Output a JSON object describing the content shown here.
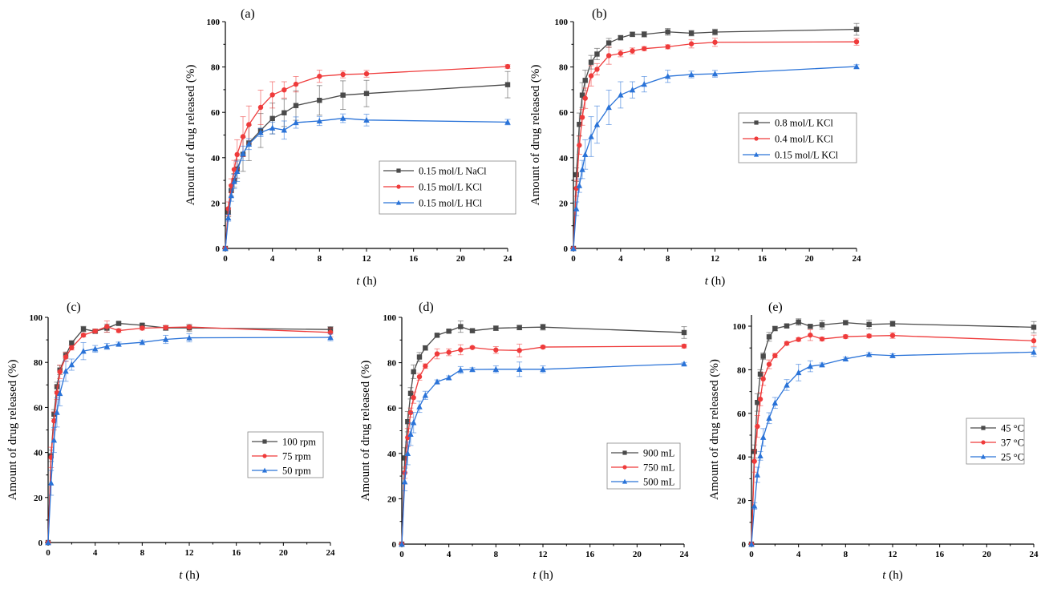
{
  "figure": {
    "colors": {
      "series1": "#4a4a4a",
      "series2": "#ef3b3b",
      "series3": "#2a73d8"
    },
    "markers": [
      "square",
      "circle",
      "triangle"
    ]
  },
  "chart_data": [
    {
      "type": "line",
      "panel_label": "(a)",
      "xlabel_italic": "t",
      "xlabel_unit": " (h)",
      "ylabel": "Amount of drug released (%)",
      "xlim": [
        0,
        24
      ],
      "ylim": [
        0,
        100
      ],
      "xticks": [
        0,
        4,
        8,
        12,
        16,
        20,
        24
      ],
      "yticks": [
        0,
        20,
        40,
        60,
        80,
        100
      ],
      "legend_position": "center-right",
      "x": [
        0,
        0.25,
        0.5,
        0.75,
        1,
        1.5,
        2,
        3,
        4,
        5,
        6,
        8,
        10,
        12,
        24
      ],
      "series": [
        {
          "name": "0.15 mol/L NaCl",
          "values": [
            0,
            16,
            25.5,
            30,
            35,
            41.5,
            46.5,
            52,
            57.3,
            59.8,
            63,
            65.3,
            67.6,
            68.3,
            72.2
          ],
          "errors": [
            0,
            2,
            2.5,
            3,
            4,
            7.5,
            7.8,
            7.5,
            6.8,
            6,
            6.5,
            6.5,
            6.3,
            5.8,
            5.8
          ]
        },
        {
          "name": "0.15 mol/L KCl",
          "values": [
            0,
            17.5,
            27.7,
            34.8,
            41.4,
            49.3,
            54.6,
            62.2,
            67.7,
            69.9,
            72.4,
            75.9,
            76.7,
            77,
            80.2
          ],
          "errors": [
            0,
            3,
            3,
            4,
            6.5,
            8.8,
            8.2,
            7.6,
            5.8,
            3.6,
            3.4,
            2.7,
            1.5,
            1.5,
            0.8
          ]
        },
        {
          "name": "0.15 mol/L HCl",
          "values": [
            0,
            13.5,
            23.3,
            29.5,
            34,
            41.9,
            46,
            51.1,
            53.1,
            52.2,
            55.5,
            56.2,
            57.4,
            56.6,
            55.7
          ],
          "errors": [
            0,
            1.5,
            2.5,
            3.2,
            4.5,
            3.2,
            2.4,
            1.8,
            2.6,
            4,
            2.5,
            2,
            1.9,
            2.6,
            1.2
          ]
        }
      ]
    },
    {
      "type": "line",
      "panel_label": "(b)",
      "xlabel_italic": "t",
      "xlabel_unit": " (h)",
      "ylabel": "Amount of drug released (%)",
      "xlim": [
        0,
        24
      ],
      "ylim": [
        0,
        100
      ],
      "xticks": [
        0,
        4,
        8,
        12,
        16,
        20,
        24
      ],
      "yticks": [
        0,
        20,
        40,
        60,
        80,
        100
      ],
      "legend_position": "center-right",
      "x": [
        0,
        0.25,
        0.5,
        0.75,
        1,
        1.5,
        2,
        3,
        4,
        5,
        6,
        8,
        10,
        12,
        24
      ],
      "series": [
        {
          "name": "0.8 mol/L KCl",
          "values": [
            0,
            32.5,
            54.7,
            67.6,
            74.1,
            82.1,
            85.7,
            90.6,
            92.9,
            94.4,
            94.4,
            95.5,
            94.9,
            95.4,
            96.6
          ],
          "errors": [
            0,
            3,
            5,
            5.5,
            4.5,
            3,
            2.5,
            2,
            1,
            1,
            1.2,
            1.5,
            1.2,
            1.3,
            2.6
          ]
        },
        {
          "name": "0.4 mol/L KCl",
          "values": [
            0,
            26.5,
            45.5,
            57.8,
            66.2,
            76.1,
            79,
            85,
            86,
            87.1,
            88.1,
            88.9,
            90.2,
            90.9,
            91.1
          ],
          "errors": [
            0,
            3.5,
            4,
            3.5,
            4.5,
            4.5,
            2.5,
            3.8,
            1.5,
            1.3,
            0.9,
            0.9,
            1.8,
            1.8,
            1.5
          ]
        },
        {
          "name": "0.15 mol/L KCl",
          "values": [
            0,
            17.5,
            27.7,
            34.8,
            41.4,
            49.3,
            54.6,
            62.2,
            67.7,
            69.9,
            72.4,
            75.9,
            76.7,
            77,
            80.2
          ],
          "errors": [
            0,
            3,
            3,
            4,
            6.5,
            8.8,
            8.2,
            7.6,
            5.8,
            3.6,
            3.4,
            2.7,
            1.5,
            1.5,
            0.8
          ]
        }
      ]
    },
    {
      "type": "line",
      "panel_label": "(c)",
      "xlabel_italic": "t",
      "xlabel_unit": " (h)",
      "ylabel": "Amount of drug released (%)",
      "xlim": [
        0,
        24
      ],
      "ylim": [
        0,
        100
      ],
      "xticks": [
        0,
        4,
        8,
        12,
        16,
        20,
        24
      ],
      "yticks": [
        0,
        20,
        40,
        60,
        80,
        100
      ],
      "legend_position": "center-right",
      "x": [
        0,
        0.25,
        0.5,
        0.75,
        1,
        1.5,
        2,
        3,
        4,
        5,
        6,
        8,
        10,
        12,
        24
      ],
      "series": [
        {
          "name": "100 rpm",
          "values": [
            0,
            38.5,
            57,
            69.2,
            76.6,
            83.1,
            88.6,
            94.8,
            93.8,
            95.2,
            97.3,
            96.5,
            95.3,
            95.3,
            94.6
          ],
          "errors": [
            0,
            2.5,
            2,
            2,
            2,
            1.5,
            1,
            1.2,
            0.8,
            1.8,
            0.6,
            0.8,
            1.1,
            1.6,
            1.3
          ]
        },
        {
          "name": "75 rpm",
          "values": [
            0,
            37.8,
            54,
            66.5,
            75.8,
            82.4,
            86.5,
            92.1,
            93.9,
            95.9,
            94.1,
            95.2,
            95.5,
            95.7,
            93.3
          ],
          "errors": [
            0,
            4.5,
            4,
            3,
            3,
            2,
            1,
            0.8,
            0.8,
            2.5,
            0.8,
            0.8,
            0.8,
            0.8,
            2
          ]
        },
        {
          "name": "50 rpm",
          "values": [
            0,
            26.5,
            45.5,
            57.8,
            66.2,
            76.1,
            79,
            85,
            86,
            87.1,
            88.1,
            88.9,
            90.2,
            90.9,
            91.1
          ],
          "errors": [
            0,
            5.5,
            5.5,
            6.5,
            5.5,
            4.5,
            2.5,
            3.8,
            1.5,
            1.3,
            0.9,
            0.9,
            1.8,
            1.8,
            1.5
          ]
        }
      ]
    },
    {
      "type": "line",
      "panel_label": "(d)",
      "xlabel_italic": "t",
      "xlabel_unit": " (h)",
      "ylabel": "Amount of drug released (%)",
      "xlim": [
        0,
        24
      ],
      "ylim": [
        0,
        100
      ],
      "xticks": [
        0,
        4,
        8,
        12,
        16,
        20,
        24
      ],
      "yticks": [
        0,
        20,
        40,
        60,
        80,
        100
      ],
      "legend_position": "center-right",
      "x": [
        0,
        0.25,
        0.5,
        0.75,
        1,
        1.5,
        2,
        3,
        4,
        5,
        6,
        8,
        10,
        12,
        24
      ],
      "series": [
        {
          "name": "900 mL",
          "values": [
            0,
            38,
            54,
            66.5,
            76,
            82.5,
            86.5,
            92.1,
            93.9,
            95.9,
            94.1,
            95.2,
            95.5,
            95.7,
            93.3
          ],
          "errors": [
            0,
            4.5,
            4.5,
            2.5,
            3,
            2,
            1,
            0.5,
            0.5,
            2.5,
            0.5,
            1,
            1,
            1.3,
            2.6
          ]
        },
        {
          "name": "750 mL",
          "values": [
            0,
            31.5,
            47,
            58,
            64.6,
            73.8,
            78.5,
            83.9,
            84.6,
            85.7,
            86.7,
            85.6,
            85.4,
            86.9,
            87.3
          ],
          "errors": [
            0,
            2.5,
            4,
            2,
            2.5,
            1.5,
            1,
            2.2,
            1.5,
            2.2,
            0.5,
            1.5,
            2.8,
            0.6,
            0.8
          ]
        },
        {
          "name": "500 mL",
          "values": [
            0,
            27.5,
            40,
            48.5,
            53.6,
            60.6,
            65.6,
            71.6,
            73.4,
            76.8,
            77,
            77.1,
            77.1,
            77.1,
            79.5
          ],
          "errors": [
            0,
            4,
            5,
            5,
            4.5,
            2.5,
            1.8,
            0.8,
            0.8,
            1.5,
            0.8,
            1.5,
            3.2,
            1.5,
            0.6
          ]
        }
      ]
    },
    {
      "type": "line",
      "panel_label": "(e)",
      "xlabel_italic": "t",
      "xlabel_unit": " (h)",
      "ylabel": "Amount of drug released (%)",
      "xlim": [
        0,
        24
      ],
      "ylim": [
        0,
        105
      ],
      "xticks": [
        0,
        4,
        8,
        12,
        16,
        20,
        24
      ],
      "yticks": [
        0,
        20,
        40,
        60,
        80,
        100
      ],
      "legend_position": "center-right",
      "x": [
        0,
        0.25,
        0.5,
        0.75,
        1,
        1.5,
        2,
        3,
        4,
        5,
        6,
        8,
        10,
        12,
        24
      ],
      "series": [
        {
          "name": "45 °C",
          "values": [
            0,
            42.5,
            65,
            78,
            86.2,
            95.1,
            98.9,
            100.1,
            101.9,
            99.9,
            100.6,
            101.6,
            100.8,
            101.1,
            99.5
          ],
          "errors": [
            0,
            3,
            4,
            2,
            1.5,
            2,
            1,
            0.8,
            1.5,
            0.8,
            2,
            1,
            2,
            1.2,
            2.6
          ]
        },
        {
          "name": "37 °C",
          "values": [
            0,
            38,
            54,
            66.5,
            75.8,
            82.5,
            86.5,
            92.1,
            93.9,
            95.9,
            94.1,
            95.2,
            95.5,
            95.7,
            93.3
          ],
          "errors": [
            0,
            5,
            5,
            3,
            3,
            2,
            1,
            0.8,
            0.8,
            2.5,
            0.8,
            0.8,
            0.8,
            1.3,
            2.6
          ]
        },
        {
          "name": "25 °C",
          "values": [
            0,
            17.5,
            31.8,
            40.5,
            49,
            57.8,
            64.8,
            73,
            78.7,
            81.6,
            82.3,
            85,
            87,
            86.5,
            88.1
          ],
          "errors": [
            0,
            1.5,
            3.5,
            2,
            4,
            2.5,
            2.5,
            2.5,
            3.8,
            2.5,
            0.8,
            0.8,
            0.8,
            0.8,
            2
          ]
        }
      ]
    }
  ]
}
